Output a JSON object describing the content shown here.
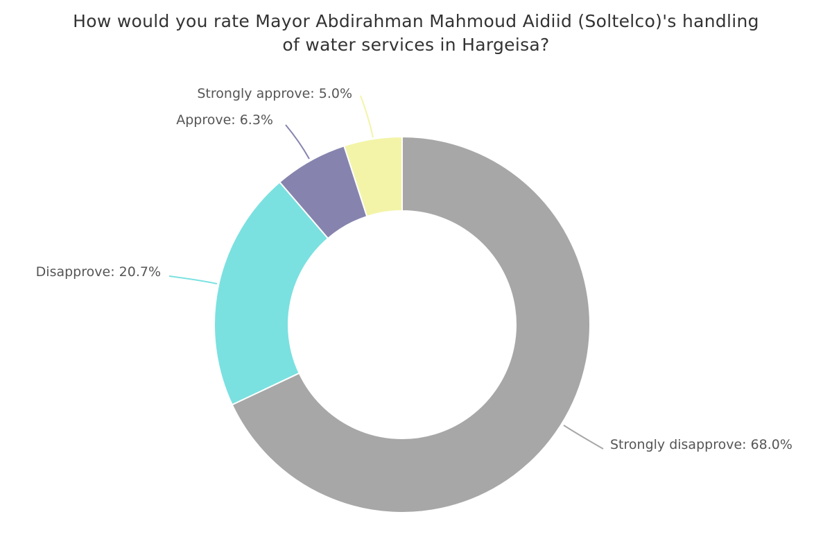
{
  "chart_data": {
    "type": "pie",
    "donut": true,
    "title_lines": [
      "How would you rate Mayor Abdirahman Mahmoud Aidiid (Soltelco)'s handling",
      "of water services in Hargeisa?"
    ],
    "slices": [
      {
        "label": "Strongly disapprove: 68.0%",
        "name": "Strongly disapprove",
        "value": 68.0,
        "color": "#a7a7a7"
      },
      {
        "label": "Disapprove: 20.7%",
        "name": "Disapprove",
        "value": 20.7,
        "color": "#7ae1e0"
      },
      {
        "label": "Approve: 6.3%",
        "name": "Approve",
        "value": 6.3,
        "color": "#8684ae"
      },
      {
        "label": "Strongly approve: 5.0%",
        "name": "Strongly approve",
        "value": 5.0,
        "color": "#f3f4a8"
      }
    ]
  }
}
